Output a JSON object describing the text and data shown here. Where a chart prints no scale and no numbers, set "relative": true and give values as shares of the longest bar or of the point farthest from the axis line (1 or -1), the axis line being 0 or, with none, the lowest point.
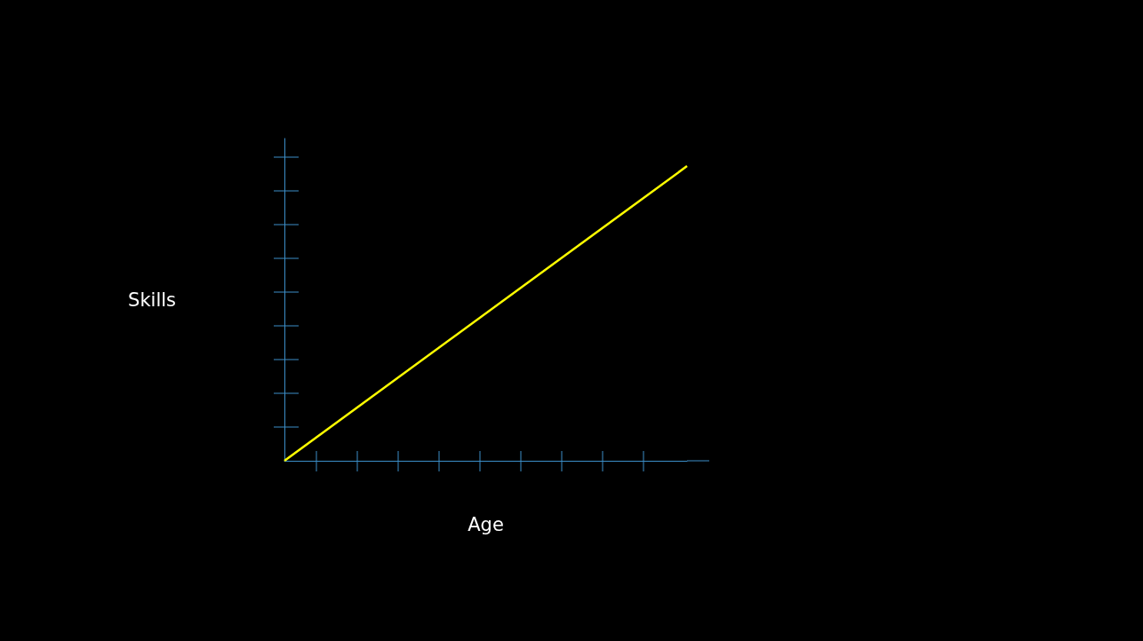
{
  "chart_data": {
    "type": "line",
    "relative": true,
    "xlabel": "Age",
    "ylabel": "Skills",
    "categories": [
      null,
      null
    ],
    "series": [
      {
        "color": "#ffff00",
        "values": [
          0,
          1
        ]
      }
    ],
    "marker": "none",
    "grid": false
  }
}
